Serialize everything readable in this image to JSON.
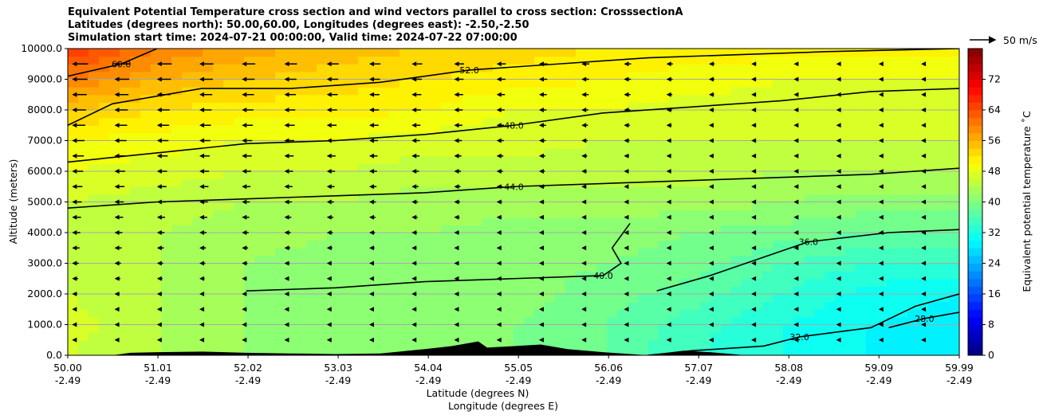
{
  "titles": [
    "Equivalent Potential Temperature cross section and wind vectors parallel to cross section: CrosssectionA",
    "Latitudes (degrees north): 50.00,60.00, Longitudes (degrees east): -2.50,-2.50",
    "Simulation start time: 2024-07-21 00:00:00, Valid time: 2024-07-22 07:00:00"
  ],
  "quiver_key": "50 m/s",
  "chart_data": {
    "type": "heatmap",
    "subtype": "filled contour cross section with wind vectors",
    "ylabel": "Altitude (meters)",
    "xlabel_lines": [
      "Latitude (degrees N)",
      "Longitude (degrees E)"
    ],
    "xlim": [
      50.0,
      59.99
    ],
    "ylim": [
      0,
      10000
    ],
    "x_ticks": [
      {
        "lat": "50.00",
        "lon": "-2.49",
        "v": 50.0
      },
      {
        "lat": "51.01",
        "lon": "-2.49",
        "v": 51.01
      },
      {
        "lat": "52.02",
        "lon": "-2.49",
        "v": 52.02
      },
      {
        "lat": "53.03",
        "lon": "-2.49",
        "v": 53.03
      },
      {
        "lat": "54.04",
        "lon": "-2.49",
        "v": 54.04
      },
      {
        "lat": "55.05",
        "lon": "-2.49",
        "v": 55.05
      },
      {
        "lat": "56.06",
        "lon": "-2.49",
        "v": 56.06
      },
      {
        "lat": "57.07",
        "lon": "-2.49",
        "v": 57.07
      },
      {
        "lat": "58.08",
        "lon": "-2.49",
        "v": 58.08
      },
      {
        "lat": "59.09",
        "lon": "-2.49",
        "v": 59.09
      },
      {
        "lat": "59.99",
        "lon": "-2.49",
        "v": 59.99
      }
    ],
    "y_ticks": [
      {
        "label": "0.0",
        "v": 0
      },
      {
        "label": "1000.0",
        "v": 1000
      },
      {
        "label": "2000.0",
        "v": 2000
      },
      {
        "label": "3000.0",
        "v": 3000
      },
      {
        "label": "4000.0",
        "v": 4000
      },
      {
        "label": "5000.0",
        "v": 5000
      },
      {
        "label": "6000.0",
        "v": 6000
      },
      {
        "label": "7000.0",
        "v": 7000
      },
      {
        "label": "8000.0",
        "v": 8000
      },
      {
        "label": "9000.0",
        "v": 9000
      },
      {
        "label": "10000.0",
        "v": 10000
      }
    ],
    "grid": "horizontal lines at y ticks",
    "colorbar": {
      "label": "Equivalent potential temperature $^\\circ$C",
      "label_text": "Equivalent potential temperature ˚C",
      "range": [
        0,
        80
      ],
      "ticks": [
        0,
        8,
        16,
        24,
        32,
        40,
        48,
        56,
        64,
        72
      ],
      "colormap": "jet"
    },
    "theta_e_field": {
      "description": "approximate theta-e (C) at heights",
      "x": [
        50.0,
        51.0,
        52.0,
        53.0,
        54.0,
        55.0,
        56.0,
        57.0,
        58.0,
        59.0,
        59.99
      ],
      "levels_m": [
        0,
        1000,
        2000,
        3000,
        4000,
        5000,
        6000,
        7000,
        8000,
        9000,
        10000
      ],
      "rows": [
        [
          46,
          44,
          42,
          40,
          40,
          40,
          38,
          34,
          32,
          30,
          29
        ],
        [
          47,
          44,
          42,
          41,
          41,
          40,
          38,
          35,
          32,
          30,
          29
        ],
        [
          46,
          44,
          42,
          41,
          41,
          41,
          39,
          37,
          34,
          31,
          30
        ],
        [
          45,
          44,
          42,
          41,
          41,
          41,
          40,
          39,
          36,
          34,
          34
        ],
        [
          45,
          44,
          43,
          42,
          42,
          41,
          41,
          40,
          39,
          38,
          38
        ],
        [
          46,
          45,
          44,
          44,
          43,
          43,
          43,
          43,
          42,
          41,
          41
        ],
        [
          48,
          47,
          46,
          46,
          45,
          45,
          45,
          45,
          44,
          44,
          44
        ],
        [
          50,
          49,
          48,
          48,
          47,
          47,
          46,
          46,
          46,
          46,
          46
        ],
        [
          54,
          52,
          51,
          51,
          50,
          48,
          48,
          47,
          47,
          47,
          47
        ],
        [
          60,
          56,
          54,
          53,
          52,
          51,
          50,
          49,
          48,
          48,
          48
        ],
        [
          66,
          60,
          57,
          55,
          54,
          53,
          52,
          51,
          51,
          51,
          51
        ]
      ]
    },
    "contours": [
      {
        "level": "28.0",
        "points": [
          [
            59.2,
            900
          ],
          [
            59.6,
            1200
          ],
          [
            59.99,
            1400
          ]
        ]
      },
      {
        "level": "32.0",
        "points": [
          [
            56.5,
            0
          ],
          [
            57.0,
            150
          ],
          [
            57.8,
            300
          ],
          [
            58.2,
            600
          ],
          [
            59.0,
            900
          ],
          [
            59.5,
            1600
          ],
          [
            59.99,
            2000
          ]
        ]
      },
      {
        "level": "36.0",
        "points": [
          [
            56.6,
            2100
          ],
          [
            57.2,
            2600
          ],
          [
            57.8,
            3200
          ],
          [
            58.3,
            3700
          ],
          [
            59.2,
            4000
          ],
          [
            59.99,
            4100
          ]
        ]
      },
      {
        "level": "40.0",
        "points": [
          [
            52.0,
            2100
          ],
          [
            53.0,
            2200
          ],
          [
            54.0,
            2400
          ],
          [
            55.0,
            2500
          ],
          [
            56.0,
            2600
          ],
          [
            56.2,
            3000
          ],
          [
            56.1,
            3500
          ],
          [
            56.3,
            4300
          ]
        ]
      },
      {
        "level": "44.0",
        "points": [
          [
            50.0,
            4800
          ],
          [
            51.0,
            5000
          ],
          [
            52.0,
            5100
          ],
          [
            53.0,
            5200
          ],
          [
            54.0,
            5300
          ],
          [
            55.0,
            5500
          ],
          [
            56.0,
            5600
          ],
          [
            57.0,
            5700
          ],
          [
            58.0,
            5800
          ],
          [
            59.0,
            5900
          ],
          [
            59.99,
            6100
          ]
        ]
      },
      {
        "level": "48.0",
        "points": [
          [
            50.0,
            6300
          ],
          [
            51.0,
            6600
          ],
          [
            52.0,
            6900
          ],
          [
            53.0,
            7000
          ],
          [
            54.0,
            7200
          ],
          [
            55.0,
            7500
          ],
          [
            56.0,
            7900
          ],
          [
            57.0,
            8100
          ],
          [
            58.0,
            8300
          ],
          [
            59.0,
            8600
          ],
          [
            59.99,
            8700
          ]
        ]
      },
      {
        "level": "52.0",
        "points": [
          [
            50.0,
            7500
          ],
          [
            50.5,
            8200
          ],
          [
            51.5,
            8700
          ],
          [
            52.5,
            8700
          ],
          [
            53.5,
            8900
          ],
          [
            54.5,
            9300
          ],
          [
            55.5,
            9500
          ],
          [
            56.5,
            9700
          ],
          [
            57.5,
            9800
          ],
          [
            58.5,
            9900
          ],
          [
            59.99,
            10000
          ]
        ]
      },
      {
        "level": "60.0",
        "points": [
          [
            50.0,
            9100
          ],
          [
            50.6,
            9500
          ],
          [
            51.0,
            10000
          ]
        ]
      }
    ],
    "contour_labels": [
      "28.0",
      "32.0",
      "36.0",
      "40.0",
      "44.0",
      "48.0",
      "52.0",
      "60.0"
    ],
    "wind": {
      "direction": "mostly toward the left (southward) along the section",
      "rows_m": [
        500,
        1000,
        1500,
        2000,
        2500,
        3000,
        3500,
        4000,
        4500,
        5000,
        5500,
        6000,
        6500,
        7000,
        7500,
        8000,
        8500,
        9000,
        9500
      ],
      "upper_speed_ms": 15,
      "lower_speed_ms": 3
    },
    "terrain": {
      "description": "black orography along bottom axis",
      "points": [
        [
          50.0,
          0
        ],
        [
          50.5,
          0
        ],
        [
          50.7,
          80
        ],
        [
          51.0,
          100
        ],
        [
          51.5,
          120
        ],
        [
          52.0,
          80
        ],
        [
          52.5,
          60
        ],
        [
          53.0,
          40
        ],
        [
          53.5,
          60
        ],
        [
          54.0,
          200
        ],
        [
          54.3,
          300
        ],
        [
          54.6,
          450
        ],
        [
          54.7,
          250
        ],
        [
          55.0,
          300
        ],
        [
          55.3,
          350
        ],
        [
          55.6,
          200
        ],
        [
          56.0,
          100
        ],
        [
          56.5,
          0
        ],
        [
          56.9,
          150
        ],
        [
          57.2,
          100
        ],
        [
          57.6,
          0
        ]
      ]
    }
  }
}
